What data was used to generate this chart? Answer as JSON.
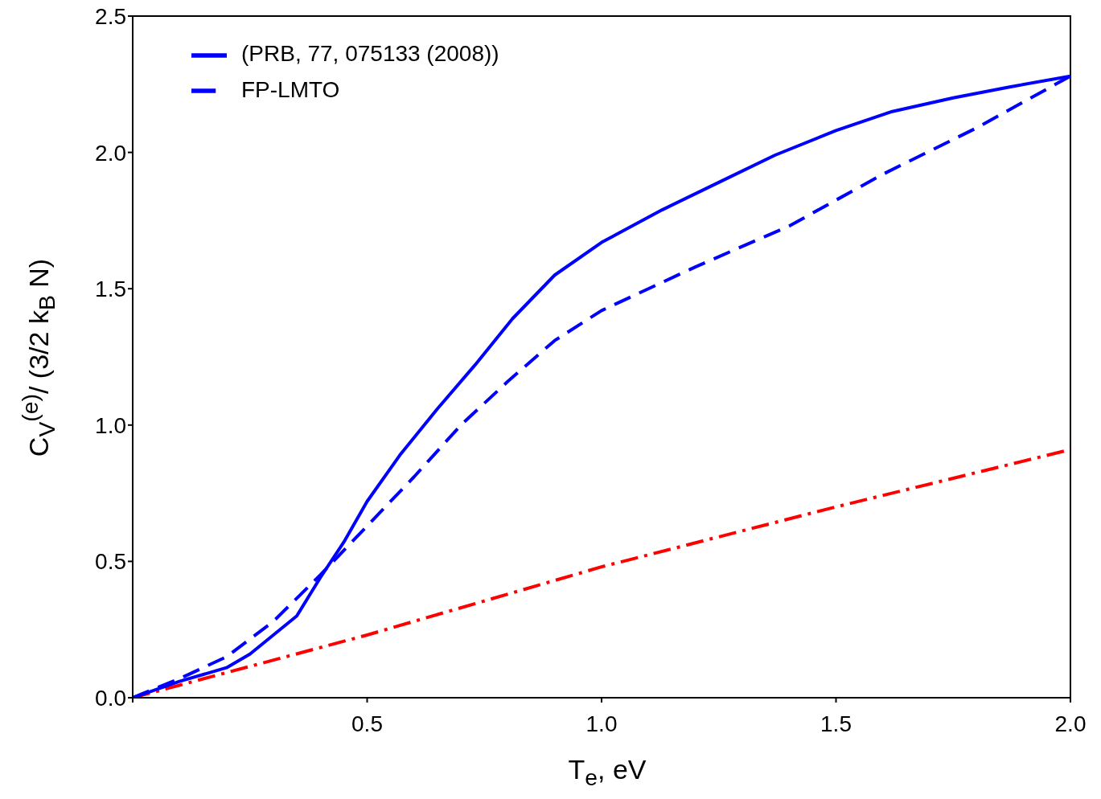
{
  "chart_data": {
    "type": "line",
    "xlabel": "T$_{e}$, eV",
    "ylabel": "C$_{V}$$^{(e)}$/ (3/2 k$_{B}$ N)",
    "xlim": [
      0,
      2
    ],
    "xticks": [
      {
        "value": 0,
        "label": null
      },
      0.5,
      {
        "value": 1,
        "label": "1.0"
      },
      1.5,
      {
        "value": 2,
        "label": "2.0"
      }
    ],
    "ylim": [
      0,
      2.5
    ],
    "yticks": [
      {
        "value": 0,
        "label": "0.0"
      },
      0.5,
      {
        "value": 1,
        "label": "1.0"
      },
      1.5,
      {
        "value": 2,
        "label": "2.0"
      },
      2.5
    ],
    "grid": false,
    "legend": "top left",
    "marker": "none",
    "series": [
      {
        "color": "#ff0000",
        "line_style": "dashdot",
        "x": [
          0,
          0.5,
          1.0,
          1.5,
          2.0
        ],
        "values": [
          0,
          0.23,
          0.48,
          0.7,
          0.91
        ]
      },
      {
        "name": "(PRB, 77, 075133 (2008))",
        "color": "#0000ff",
        "line_style": "solid",
        "x": [
          0,
          0.1,
          0.2,
          0.25,
          0.3,
          0.35,
          0.4,
          0.45,
          0.5,
          0.57,
          0.65,
          0.73,
          0.81,
          0.9,
          1.0,
          1.13,
          1.25,
          1.37,
          1.5,
          1.62,
          1.75,
          1.87,
          2.0
        ],
        "values": [
          0,
          0.06,
          0.11,
          0.16,
          0.23,
          0.3,
          0.44,
          0.57,
          0.72,
          0.89,
          1.06,
          1.22,
          1.39,
          1.55,
          1.67,
          1.79,
          1.89,
          1.99,
          2.08,
          2.15,
          2.2,
          2.24,
          2.28
        ]
      },
      {
        "name": "FP-LMTO",
        "color": "#0000ff",
        "line_style": "dashed",
        "x": [
          0,
          0.1,
          0.2,
          0.3,
          0.4,
          0.5,
          0.6,
          0.7,
          0.8,
          0.9,
          1.0,
          1.2,
          1.4,
          1.6,
          1.8,
          2.0
        ],
        "values": [
          0,
          0.07,
          0.15,
          0.28,
          0.45,
          0.63,
          0.81,
          1.0,
          1.16,
          1.31,
          1.42,
          1.58,
          1.73,
          1.92,
          2.09,
          2.28
        ]
      }
    ]
  }
}
